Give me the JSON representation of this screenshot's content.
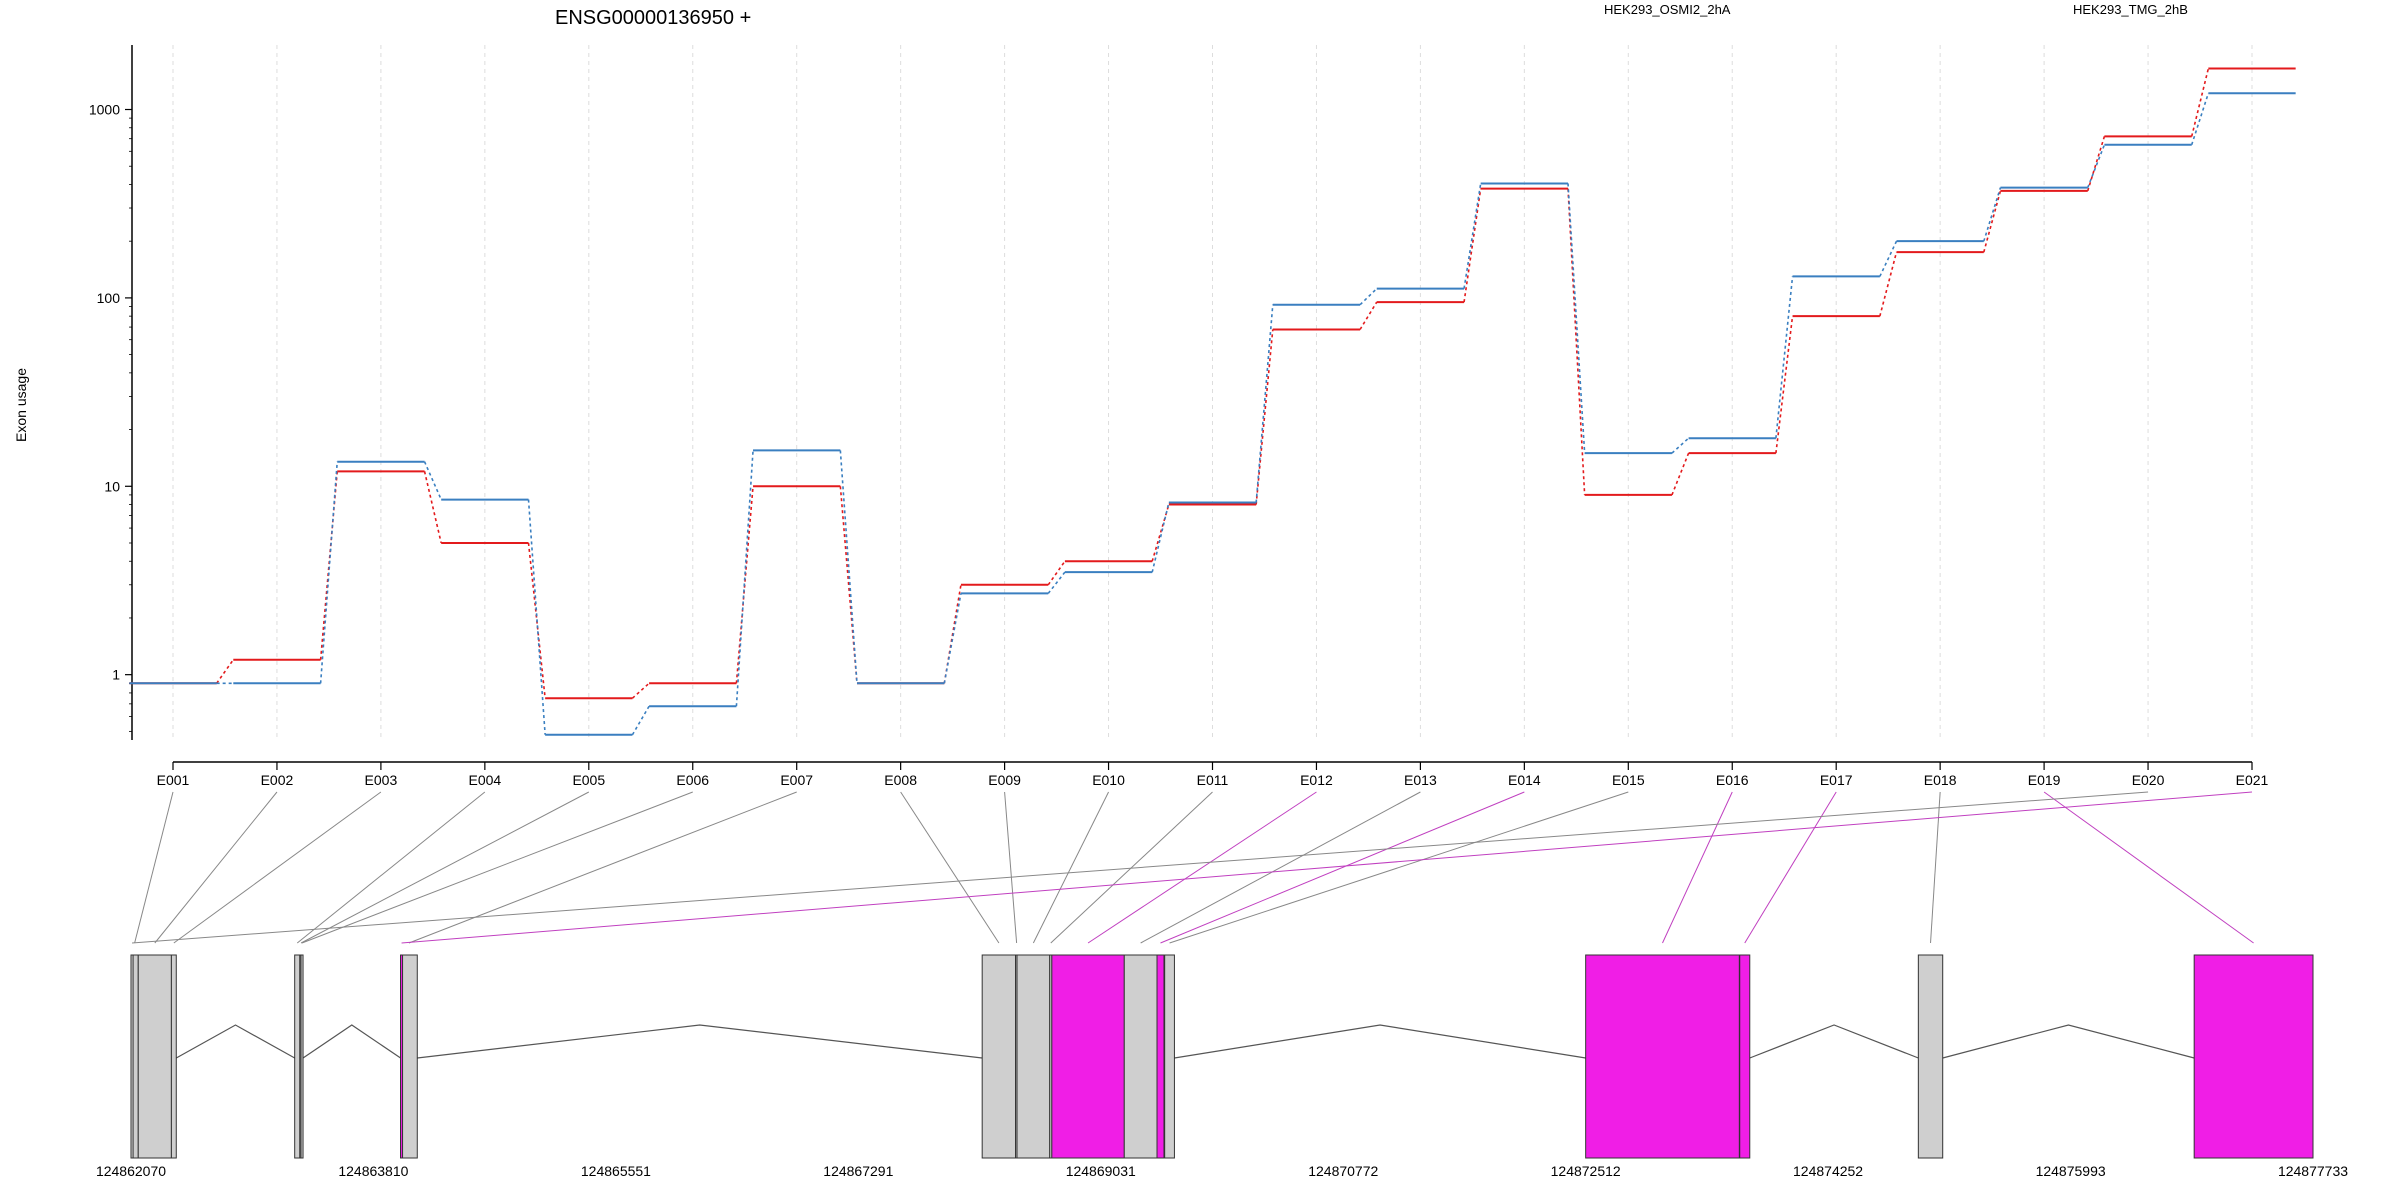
{
  "chart_data": {
    "type": "line",
    "title": "ENSG00000136950 +",
    "ylabel": "Exon usage",
    "y_scale": "log",
    "ylim": [
      0.45,
      2200
    ],
    "y_ticks": [
      1,
      10,
      100,
      1000
    ],
    "y_tick_labels": [
      "1",
      "10",
      "100",
      "1000"
    ],
    "grid": "vertical dashed lines at each exon",
    "legend_placement": "top",
    "categories": [
      "E001",
      "E002",
      "E003",
      "E004",
      "E005",
      "E006",
      "E007",
      "E008",
      "E009",
      "E010",
      "E011",
      "E012",
      "E013",
      "E014",
      "E015",
      "E016",
      "E017",
      "E018",
      "E019",
      "E020",
      "E021"
    ],
    "series": [
      {
        "name": "HEK293_OSMI2_2hA",
        "color": "#e31a1c",
        "values": [
          0.9,
          1.2,
          12,
          5,
          0.75,
          0.9,
          10,
          0.9,
          3,
          4,
          8,
          68,
          95,
          380,
          9,
          15,
          80,
          175,
          370,
          720,
          1650
        ]
      },
      {
        "name": "HEK293_TMG_2hB",
        "color": "#3a7fc0",
        "values": [
          0.9,
          0.9,
          13.5,
          8.5,
          0.48,
          0.68,
          15.5,
          0.9,
          2.7,
          3.5,
          8.2,
          92,
          112,
          405,
          15,
          18,
          130,
          200,
          385,
          650,
          1220
        ]
      }
    ],
    "gene_model": {
      "x_ticks": [
        124862070,
        124863810,
        124865551,
        124867291,
        124869031,
        124870772,
        124872512,
        124874252,
        124875993,
        124877733
      ],
      "x_tick_labels": [
        "124862070",
        "124863810",
        "124865551",
        "124867291",
        "124869031",
        "124870772",
        "124872512",
        "124874252",
        "124875993",
        "124877733"
      ],
      "exons": [
        {
          "id": "E001",
          "start": 124862070,
          "end": 124862122,
          "highlight": false
        },
        {
          "id": "E002",
          "start": 124862122,
          "end": 124862360,
          "highlight": false
        },
        {
          "id": "E003",
          "start": 124862360,
          "end": 124862395,
          "highlight": false
        },
        {
          "id": "E004",
          "start": 124863245,
          "end": 124863282,
          "highlight": false
        },
        {
          "id": "E005",
          "start": 124863282,
          "end": 124863300,
          "highlight": false
        },
        {
          "id": "E006",
          "start": 124863290,
          "end": 124863305,
          "highlight": false
        },
        {
          "id": "E007",
          "start": 124864005,
          "end": 124864125,
          "highlight": false
        },
        {
          "id": "E008",
          "start": 124868180,
          "end": 124868420,
          "highlight": false
        },
        {
          "id": "E009",
          "start": 124868420,
          "end": 124868430,
          "highlight": false
        },
        {
          "id": "E010",
          "start": 124868430,
          "end": 124868665,
          "highlight": false
        },
        {
          "id": "E011",
          "start": 124868665,
          "end": 124868680,
          "highlight": false
        },
        {
          "id": "E012",
          "start": 124868680,
          "end": 124869200,
          "highlight": true
        },
        {
          "id": "E013",
          "start": 124869200,
          "end": 124869435,
          "highlight": false
        },
        {
          "id": "E014",
          "start": 124869435,
          "end": 124869485,
          "highlight": true
        },
        {
          "id": "E015",
          "start": 124869490,
          "end": 124869560,
          "highlight": false
        },
        {
          "id": "E016",
          "start": 124872512,
          "end": 124873615,
          "highlight": true
        },
        {
          "id": "E017",
          "start": 124873618,
          "end": 124873690,
          "highlight": true
        },
        {
          "id": "E018",
          "start": 124874900,
          "end": 124875075,
          "highlight": false
        },
        {
          "id": "E019",
          "start": 124876880,
          "end": 124877733,
          "highlight": true
        },
        {
          "id": "E020",
          "start": 124862070,
          "end": 124862085,
          "highlight": false
        },
        {
          "id": "E021",
          "start": 124864005,
          "end": 124864010,
          "highlight": true
        }
      ]
    }
  }
}
